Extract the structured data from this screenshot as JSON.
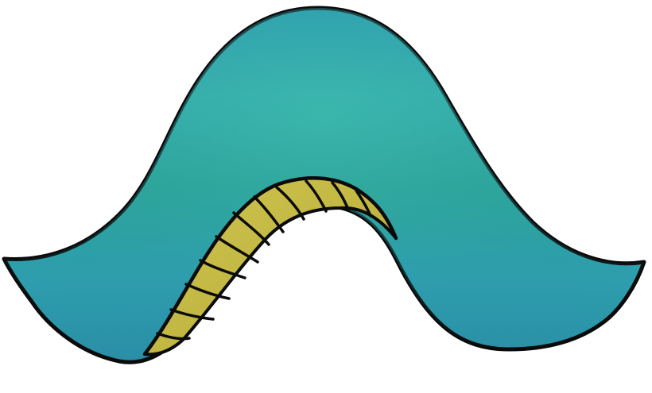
{
  "colors": {
    "background": "#ffffff",
    "outline": "#0b0b0b",
    "hat_teal_light": "#38b3ae",
    "hat_teal_mid": "#2f9fb2",
    "hat_teal_dark": "#2a8ea6",
    "hat_green": "#2aa592",
    "trim_gold": "#c9bf4a",
    "trim_gold_dark": "#b4aa35"
  },
  "illustration": {
    "subject": "hat",
    "style": "cartoon-hand-drawn",
    "main_color_name": "teal",
    "trim_color_name": "gold"
  }
}
